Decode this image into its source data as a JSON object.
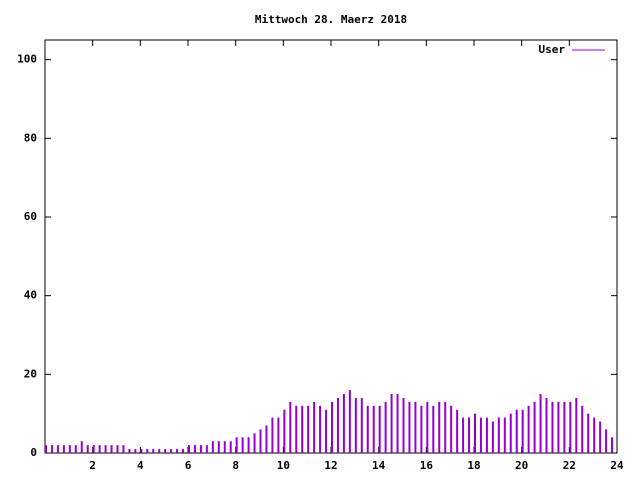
{
  "chart_data": {
    "type": "impulses",
    "title": "Mittwoch 28. Maerz 2018",
    "x": [
      0,
      0.25,
      0.5,
      0.75,
      1,
      1.25,
      1.5,
      1.75,
      2,
      2.25,
      2.5,
      2.75,
      3,
      3.25,
      3.5,
      3.75,
      4,
      4.25,
      4.5,
      4.75,
      5,
      5.25,
      5.5,
      5.75,
      6,
      6.25,
      6.5,
      6.75,
      7,
      7.25,
      7.5,
      7.75,
      8,
      8.25,
      8.5,
      8.75,
      9,
      9.25,
      9.5,
      9.75,
      10,
      10.25,
      10.5,
      10.75,
      11,
      11.25,
      11.5,
      11.75,
      12,
      12.25,
      12.5,
      12.75,
      13,
      13.25,
      13.5,
      13.75,
      14,
      14.25,
      14.5,
      14.75,
      15,
      15.25,
      15.5,
      15.75,
      16,
      16.25,
      16.5,
      16.75,
      17,
      17.25,
      17.5,
      17.75,
      18,
      18.25,
      18.5,
      18.75,
      19,
      19.25,
      19.5,
      19.75,
      20,
      20.25,
      20.5,
      20.75,
      21,
      21.25,
      21.5,
      21.75,
      22,
      22.25,
      22.5,
      22.75,
      23,
      23.25,
      23.5,
      23.75
    ],
    "series": [
      {
        "name": "User",
        "color": "#9400d3",
        "values": [
          2,
          2,
          2,
          2,
          2,
          2,
          3,
          2,
          2,
          2,
          2,
          2,
          2,
          2,
          1,
          1,
          1,
          1,
          1,
          1,
          1,
          1,
          1,
          1,
          2,
          2,
          2,
          2,
          3,
          3,
          3,
          3,
          4,
          4,
          4,
          5,
          6,
          7,
          9,
          9,
          11,
          13,
          12,
          12,
          12,
          13,
          12,
          11,
          13,
          14,
          15,
          16,
          14,
          14,
          12,
          12,
          12,
          13,
          15,
          15,
          14,
          13,
          13,
          12,
          13,
          12,
          13,
          13,
          12,
          11,
          9,
          9,
          10,
          9,
          9,
          8,
          9,
          9,
          10,
          11,
          11,
          12,
          13,
          15,
          14,
          13,
          13,
          13,
          13,
          14,
          12,
          10,
          9,
          8,
          6,
          4
        ]
      }
    ],
    "xlim": [
      0,
      24
    ],
    "xticks": [
      2,
      4,
      6,
      8,
      10,
      12,
      14,
      16,
      18,
      20,
      22,
      24
    ],
    "ylim": [
      0,
      105
    ],
    "yticks": [
      0,
      20,
      40,
      60,
      80,
      100
    ],
    "legend": "upper right"
  }
}
